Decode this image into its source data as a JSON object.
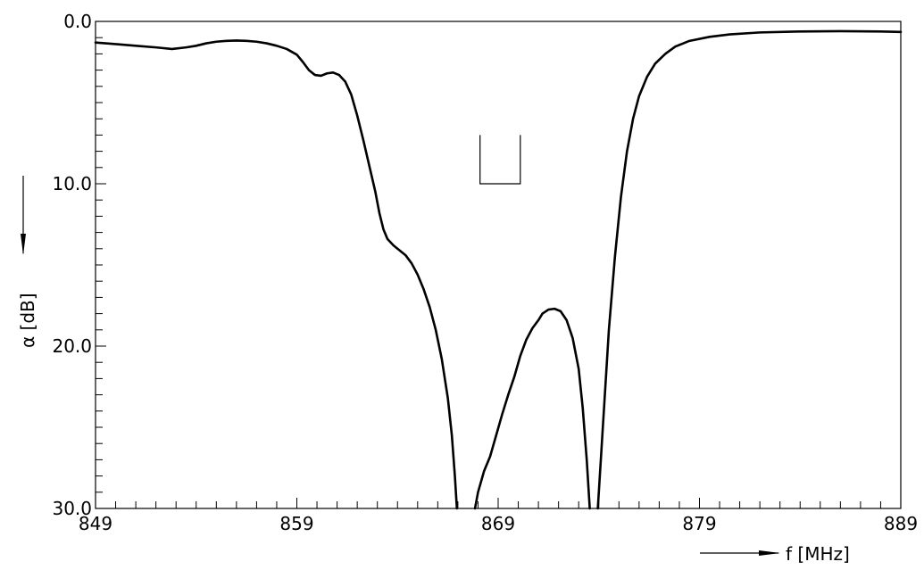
{
  "chart_data": {
    "type": "line",
    "title": "",
    "xlabel": "f  [MHz]",
    "ylabel": "α  [dB]",
    "xlim": [
      849,
      889
    ],
    "ylim": [
      0,
      30
    ],
    "y_inverted": true,
    "grid": false,
    "x_ticks": [
      849,
      859,
      869,
      879,
      889
    ],
    "x_tick_labels": [
      "849",
      "859",
      "869",
      "879",
      "889"
    ],
    "y_ticks": [
      0,
      10,
      20,
      30
    ],
    "y_tick_labels": [
      "0.0",
      "10.0",
      "20.0",
      "30.0"
    ],
    "x_minor_step": 1,
    "y_minor_step": 1,
    "series": [
      {
        "segments": [
          [
            [
              849.0,
              1.3
            ],
            [
              850.0,
              1.4
            ],
            [
              851.0,
              1.5
            ],
            [
              852.0,
              1.6
            ],
            [
              852.8,
              1.7
            ],
            [
              853.5,
              1.6
            ],
            [
              854.0,
              1.5
            ],
            [
              854.5,
              1.35
            ],
            [
              855.0,
              1.25
            ],
            [
              855.5,
              1.2
            ],
            [
              856.0,
              1.18
            ],
            [
              856.5,
              1.2
            ],
            [
              857.0,
              1.25
            ],
            [
              857.5,
              1.35
            ],
            [
              858.0,
              1.5
            ],
            [
              858.5,
              1.7
            ],
            [
              859.0,
              2.05
            ],
            [
              859.3,
              2.5
            ],
            [
              859.6,
              3.0
            ],
            [
              859.9,
              3.3
            ],
            [
              860.2,
              3.35
            ],
            [
              860.5,
              3.2
            ],
            [
              860.8,
              3.15
            ],
            [
              861.1,
              3.3
            ],
            [
              861.4,
              3.7
            ],
            [
              861.7,
              4.5
            ],
            [
              862.0,
              5.8
            ],
            [
              862.3,
              7.3
            ],
            [
              862.6,
              8.9
            ],
            [
              862.9,
              10.5
            ],
            [
              863.1,
              11.8
            ],
            [
              863.3,
              12.8
            ],
            [
              863.5,
              13.4
            ],
            [
              863.8,
              13.8
            ],
            [
              864.1,
              14.1
            ],
            [
              864.4,
              14.4
            ],
            [
              864.7,
              14.9
            ],
            [
              865.0,
              15.6
            ],
            [
              865.3,
              16.5
            ],
            [
              865.6,
              17.6
            ],
            [
              865.9,
              19.0
            ],
            [
              866.2,
              20.8
            ],
            [
              866.5,
              23.2
            ],
            [
              866.7,
              25.5
            ],
            [
              866.85,
              28.0
            ],
            [
              866.95,
              30.0
            ]
          ],
          [
            [
              867.85,
              30.0
            ],
            [
              868.0,
              29.0
            ],
            [
              868.3,
              27.7
            ],
            [
              868.6,
              26.8
            ],
            [
              868.9,
              25.5
            ],
            [
              869.2,
              24.2
            ],
            [
              869.5,
              23.0
            ],
            [
              869.8,
              21.9
            ],
            [
              870.1,
              20.6
            ],
            [
              870.4,
              19.6
            ],
            [
              870.7,
              18.9
            ],
            [
              871.0,
              18.4
            ],
            [
              871.2,
              18.0
            ],
            [
              871.5,
              17.75
            ],
            [
              871.8,
              17.7
            ],
            [
              872.1,
              17.85
            ],
            [
              872.4,
              18.4
            ],
            [
              872.7,
              19.5
            ],
            [
              873.0,
              21.4
            ],
            [
              873.2,
              23.8
            ],
            [
              873.4,
              27.0
            ],
            [
              873.55,
              30.0
            ]
          ]
        ],
        "right_segments": [
          [
            [
              873.95,
              30.0
            ],
            [
              874.1,
              27.0
            ],
            [
              874.3,
              23.0
            ],
            [
              874.5,
              19.0
            ],
            [
              874.8,
              14.5
            ],
            [
              875.1,
              10.8
            ],
            [
              875.4,
              8.0
            ],
            [
              875.7,
              6.0
            ],
            [
              876.0,
              4.6
            ],
            [
              876.4,
              3.4
            ],
            [
              876.8,
              2.6
            ],
            [
              877.3,
              2.0
            ],
            [
              877.8,
              1.55
            ],
            [
              878.5,
              1.2
            ],
            [
              879.5,
              0.95
            ],
            [
              880.5,
              0.8
            ],
            [
              882.0,
              0.68
            ],
            [
              884.0,
              0.62
            ],
            [
              886.0,
              0.6
            ],
            [
              888.0,
              0.62
            ],
            [
              889.0,
              0.65
            ]
          ]
        ]
      }
    ],
    "annotation_bracket": {
      "x": [
        868.1,
        870.1
      ],
      "y_top": 7.0,
      "y_bottom": 10.0
    }
  }
}
